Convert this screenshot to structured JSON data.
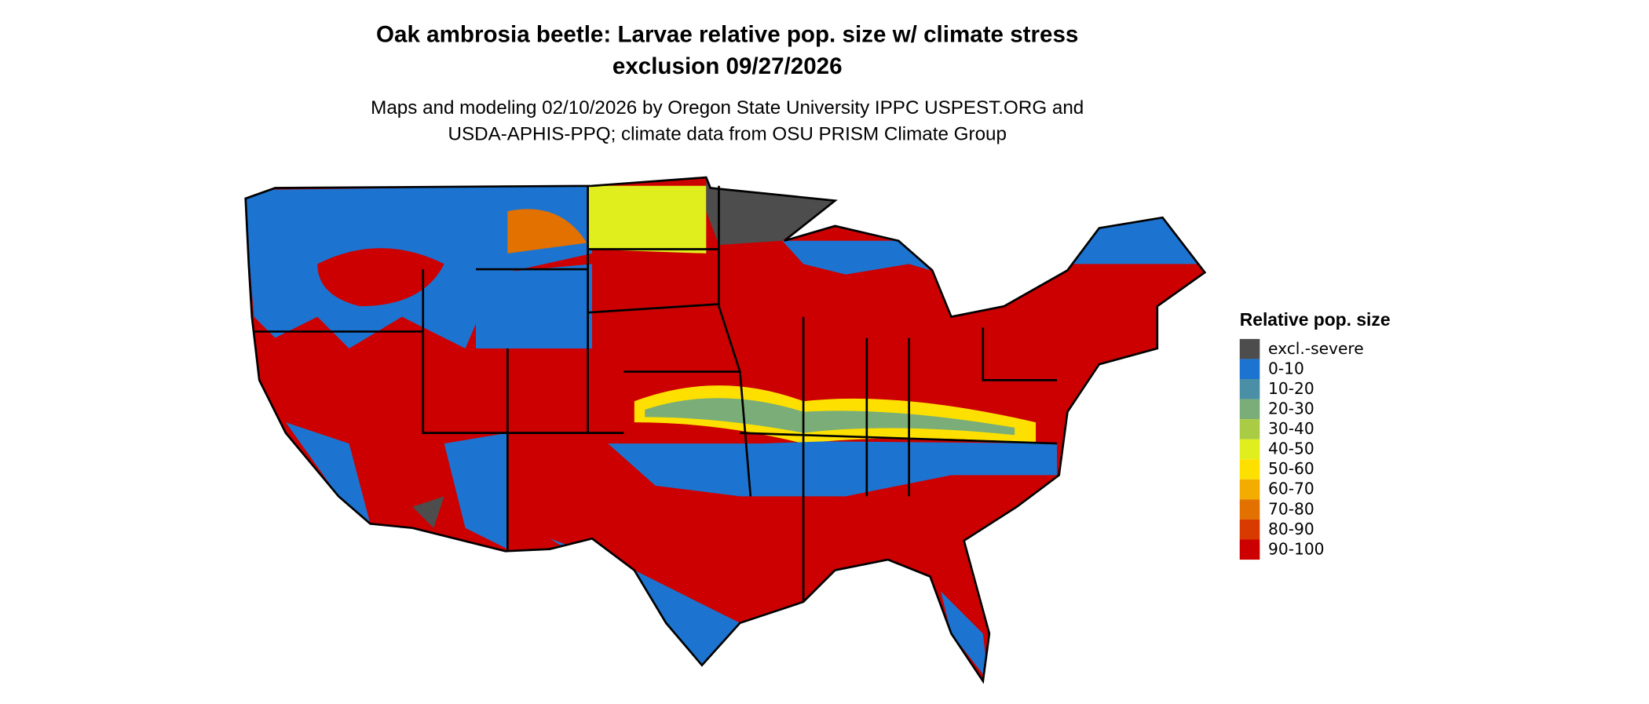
{
  "title_lines": [
    "Oak ambrosia beetle: Larvae relative pop. size w/ climate stress",
    "exclusion 09/27/2026"
  ],
  "subtitle_lines": [
    "Maps and modeling 02/10/2026 by Oregon State University IPPC USPEST.ORG and",
    "USDA-APHIS-PPQ; climate data from OSU PRISM Climate Group"
  ],
  "legend": {
    "title": "Relative pop. size",
    "items": [
      {
        "label": "excl.-severe",
        "color": "#4d4d4d"
      },
      {
        "label": "0-10",
        "color": "#1c74d0"
      },
      {
        "label": "10-20",
        "color": "#4a8fa6"
      },
      {
        "label": "20-30",
        "color": "#7aad78"
      },
      {
        "label": "30-40",
        "color": "#aacc44"
      },
      {
        "label": "40-50",
        "color": "#dfee1c"
      },
      {
        "label": "50-60",
        "color": "#fde000"
      },
      {
        "label": "60-70",
        "color": "#f2ad00"
      },
      {
        "label": "70-80",
        "color": "#e27100"
      },
      {
        "label": "80-90",
        "color": "#d83a00"
      },
      {
        "label": "90-100",
        "color": "#cc0000"
      }
    ]
  }
}
